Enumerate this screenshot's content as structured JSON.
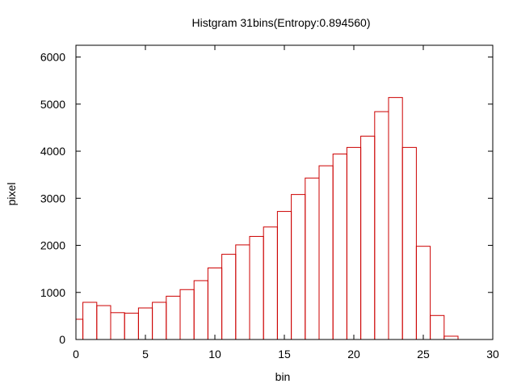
{
  "chart_data": {
    "type": "bar",
    "title": "Histgram 31bins(Entropy:0.894560)",
    "xlabel": "bin",
    "ylabel": "pixel",
    "xlim": [
      0,
      30
    ],
    "ylim": [
      0,
      6250
    ],
    "xticks": [
      0,
      5,
      10,
      15,
      20,
      25,
      30
    ],
    "yticks": [
      0,
      1000,
      2000,
      3000,
      4000,
      5000,
      6000
    ],
    "bin_width": 1,
    "bar_centers": [
      0,
      1,
      2,
      3,
      4,
      5,
      6,
      7,
      8,
      9,
      10,
      11,
      12,
      13,
      14,
      15,
      16,
      17,
      18,
      19,
      20,
      21,
      22,
      23,
      24,
      25,
      26,
      27
    ],
    "values": [
      430,
      790,
      720,
      570,
      560,
      670,
      790,
      920,
      1060,
      1250,
      1520,
      1810,
      2010,
      2190,
      2390,
      2720,
      3080,
      3430,
      3690,
      3940,
      4080,
      4320,
      4840,
      5140,
      4080,
      1980,
      510,
      70
    ],
    "bar_color": "#cc0000",
    "grid": false
  }
}
